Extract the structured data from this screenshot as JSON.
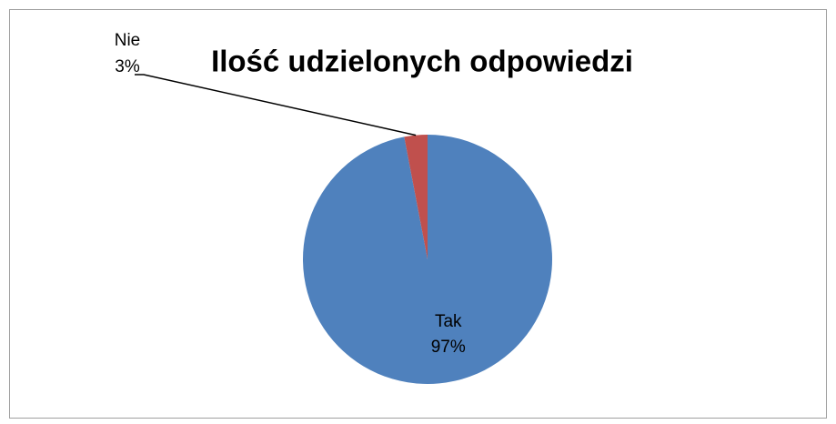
{
  "chart_data": {
    "type": "pie",
    "title": "Ilość udzielonych odpowiedzi",
    "categories": [
      "Tak",
      "Nie"
    ],
    "values": [
      97,
      3
    ],
    "value_labels": [
      "97%",
      "3%"
    ],
    "colors": [
      "#4f81bd",
      "#c0504d"
    ]
  }
}
